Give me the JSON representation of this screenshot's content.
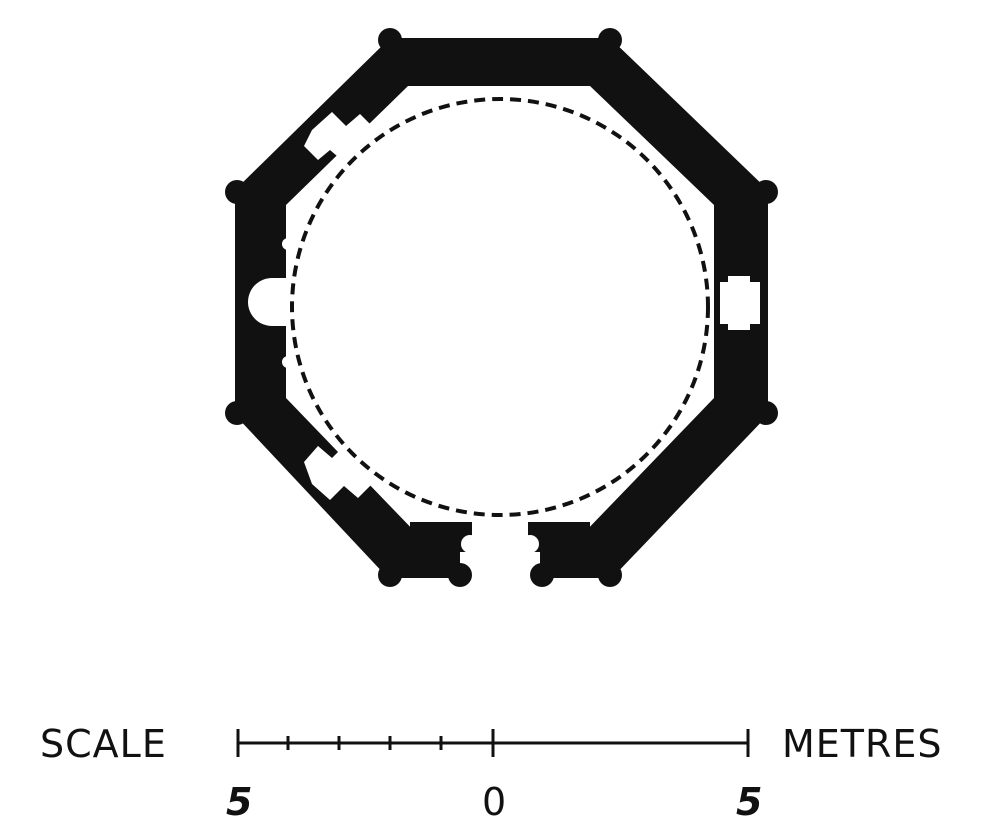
{
  "scale": {
    "left_label": "SCALE",
    "right_label": "METRES",
    "tick_labels": [
      "5",
      "0",
      "5"
    ]
  },
  "colors": {
    "wall": "#111111",
    "background": "#ffffff"
  }
}
